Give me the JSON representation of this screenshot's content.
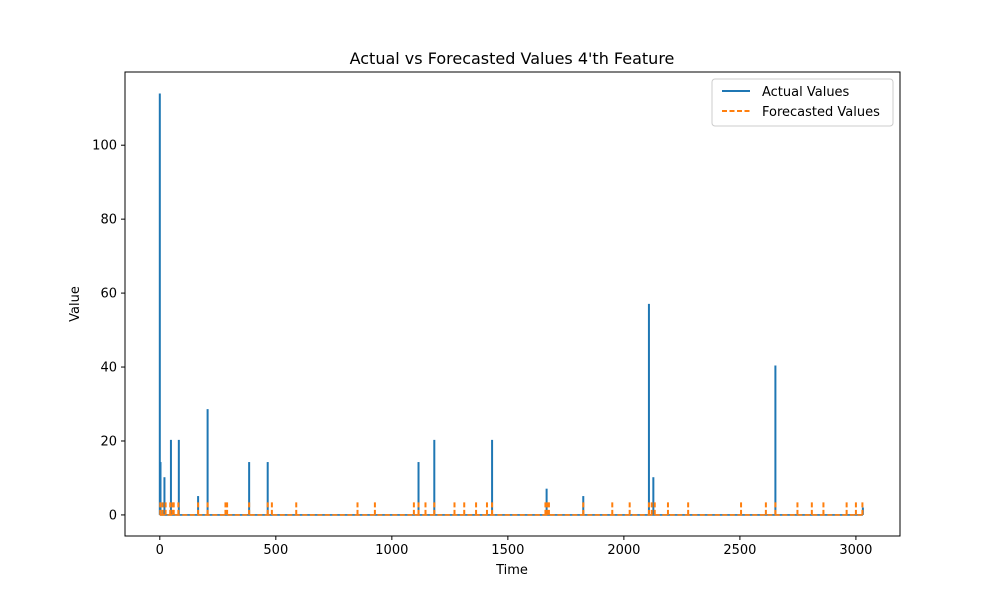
{
  "chart_data": {
    "type": "line",
    "title": "Actual vs Forecasted Values 4'th Feature",
    "xlabel": "Time",
    "ylabel": "Value",
    "xlim": [
      -150,
      3190
    ],
    "ylim": [
      -5.7,
      119.8
    ],
    "x_ticks": [
      0,
      500,
      1000,
      1500,
      2000,
      2500,
      3000
    ],
    "y_ticks": [
      0,
      20,
      40,
      60,
      80,
      100
    ],
    "legend_position": "top-right",
    "grid": false,
    "x_range": [
      0,
      3030
    ],
    "series": [
      {
        "name": "Actual Values",
        "color": "#1f77b4",
        "style": "solid",
        "baseline": 0,
        "spikes": [
          {
            "x": 0,
            "y": 114
          },
          {
            "x": 3,
            "y": 14.3
          },
          {
            "x": 20,
            "y": 10.2
          },
          {
            "x": 48,
            "y": 20.3
          },
          {
            "x": 82,
            "y": 20.3
          },
          {
            "x": 165,
            "y": 5.1
          },
          {
            "x": 206,
            "y": 28.6
          },
          {
            "x": 385,
            "y": 14.3
          },
          {
            "x": 465,
            "y": 14.3
          },
          {
            "x": 1115,
            "y": 14.3
          },
          {
            "x": 1183,
            "y": 20.3
          },
          {
            "x": 1432,
            "y": 20.3
          },
          {
            "x": 1667,
            "y": 7.1
          },
          {
            "x": 1825,
            "y": 5.1
          },
          {
            "x": 2108,
            "y": 57.1
          },
          {
            "x": 2127,
            "y": 10.2
          },
          {
            "x": 2653,
            "y": 40.4
          },
          {
            "x": 3030,
            "y": 2.0
          }
        ]
      },
      {
        "name": "Forecasted Values",
        "color": "#ff7f0e",
        "style": "dashed",
        "baseline": 0,
        "spikes": [
          {
            "x": 2,
            "y": 3.7
          },
          {
            "x": 12,
            "y": 3.7
          },
          {
            "x": 25,
            "y": 3.7
          },
          {
            "x": 45,
            "y": 3.7
          },
          {
            "x": 55,
            "y": 3.7
          },
          {
            "x": 60,
            "y": 3.7
          },
          {
            "x": 80,
            "y": 3.7
          },
          {
            "x": 165,
            "y": 3.7
          },
          {
            "x": 206,
            "y": 3.7
          },
          {
            "x": 283,
            "y": 3.7
          },
          {
            "x": 290,
            "y": 3.7
          },
          {
            "x": 385,
            "y": 3.7
          },
          {
            "x": 465,
            "y": 3.7
          },
          {
            "x": 483,
            "y": 3.7
          },
          {
            "x": 588,
            "y": 3.7
          },
          {
            "x": 852,
            "y": 3.7
          },
          {
            "x": 927,
            "y": 3.7
          },
          {
            "x": 1095,
            "y": 3.7
          },
          {
            "x": 1115,
            "y": 3.7
          },
          {
            "x": 1145,
            "y": 3.7
          },
          {
            "x": 1183,
            "y": 3.7
          },
          {
            "x": 1270,
            "y": 3.7
          },
          {
            "x": 1312,
            "y": 3.7
          },
          {
            "x": 1363,
            "y": 3.7
          },
          {
            "x": 1410,
            "y": 3.7
          },
          {
            "x": 1432,
            "y": 3.7
          },
          {
            "x": 1662,
            "y": 3.7
          },
          {
            "x": 1670,
            "y": 3.7
          },
          {
            "x": 1677,
            "y": 3.7
          },
          {
            "x": 1825,
            "y": 3.7
          },
          {
            "x": 1950,
            "y": 3.7
          },
          {
            "x": 2025,
            "y": 3.7
          },
          {
            "x": 2108,
            "y": 3.7
          },
          {
            "x": 2120,
            "y": 3.7
          },
          {
            "x": 2133,
            "y": 3.7
          },
          {
            "x": 2190,
            "y": 3.7
          },
          {
            "x": 2277,
            "y": 3.7
          },
          {
            "x": 2505,
            "y": 3.7
          },
          {
            "x": 2612,
            "y": 3.7
          },
          {
            "x": 2653,
            "y": 3.7
          },
          {
            "x": 2748,
            "y": 3.7
          },
          {
            "x": 2810,
            "y": 3.7
          },
          {
            "x": 2860,
            "y": 3.7
          },
          {
            "x": 2960,
            "y": 3.7
          },
          {
            "x": 3000,
            "y": 3.7
          },
          {
            "x": 3028,
            "y": 3.7
          }
        ]
      }
    ]
  }
}
